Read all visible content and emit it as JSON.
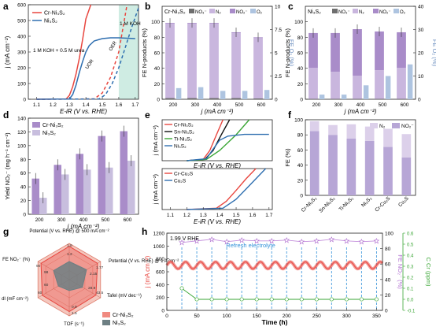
{
  "chart_data": [
    {
      "panel": "a",
      "type": "line",
      "xlabel": "E-iR (V vs. RHE)",
      "ylabel": "j (mA cm⁻²)",
      "xlim": [
        1.05,
        1.72
      ],
      "ylim": [
        0,
        600
      ],
      "xticks": [
        "1.1",
        "1.2",
        "1.3",
        "1.4",
        "1.5",
        "1.6",
        "1.7"
      ],
      "yticks": [
        "0",
        "100",
        "200",
        "300",
        "400",
        "500",
        "600"
      ],
      "legend": [
        "Cr-Ni₃S₂",
        "Ni₃S₂"
      ],
      "annotations": [
        "1 M KOH + 0.5 M urea",
        "1 M KOH",
        "UOR",
        "OER"
      ],
      "series": [
        {
          "name": "Cr-Ni₃S₂",
          "style": "solid",
          "color": "#e8463f",
          "x": [
            1.1,
            1.28,
            1.3,
            1.32,
            1.34,
            1.36,
            1.38,
            1.4,
            1.43
          ],
          "y": [
            0,
            2,
            25,
            80,
            160,
            260,
            380,
            510,
            600
          ]
        },
        {
          "name": "Ni₃S₂",
          "style": "solid",
          "color": "#2f6fb0",
          "x": [
            1.1,
            1.3,
            1.32,
            1.34,
            1.36,
            1.38,
            1.4,
            1.42,
            1.45,
            1.5,
            1.55,
            1.6,
            1.7
          ],
          "y": [
            0,
            2,
            30,
            90,
            170,
            240,
            300,
            340,
            370,
            385,
            390,
            390,
            385
          ]
        },
        {
          "style": "dashed",
          "color": "#e8463f",
          "x": [
            1.1,
            1.45,
            1.5,
            1.55,
            1.6,
            1.62,
            1.65
          ],
          "y": [
            0,
            2,
            40,
            140,
            300,
            420,
            600
          ]
        },
        {
          "style": "dashed",
          "color": "#2f6fb0",
          "x": [
            1.1,
            1.48,
            1.52,
            1.56,
            1.6,
            1.64,
            1.68,
            1.72
          ],
          "y": [
            0,
            2,
            30,
            100,
            200,
            330,
            460,
            580
          ]
        }
      ]
    },
    {
      "panel": "b",
      "type": "bar",
      "label": "Cr-Ni₃S₂",
      "xlabel": "j (mA cm⁻²)",
      "ylabel": "FE N-products (%)",
      "y2label": "FE O₂ (%)",
      "categories": [
        "200",
        "300",
        "400",
        "500",
        "600"
      ],
      "ylim": [
        0,
        120
      ],
      "y2lim": [
        0,
        10
      ],
      "legend": [
        "NO₃⁻",
        "N₂",
        "NO₂⁻",
        "O₂"
      ],
      "NO3": [
        1.5,
        1.5,
        1.5,
        1.5,
        1.0
      ],
      "N2": [
        96,
        96,
        96,
        84,
        78
      ],
      "NO2": [
        1.0,
        1.0,
        1.0,
        1.0,
        1.0
      ],
      "O2": [
        1.2,
        1.3,
        0.9,
        0.9,
        1.0
      ]
    },
    {
      "panel": "c",
      "type": "bar",
      "label": "Ni₃S₂",
      "xlabel": "j (mA cm⁻²)",
      "ylabel": "FE N-products (%)",
      "y2label": "FE O₂ (%)",
      "categories": [
        "200",
        "300",
        "400",
        "500",
        "600"
      ],
      "ylim": [
        0,
        120
      ],
      "y2lim": [
        0,
        40
      ],
      "legend": [
        "NO₃⁻",
        "N₂",
        "NO₂⁻",
        "O₂"
      ],
      "NO3": [
        0.5,
        0.5,
        0.5,
        0.5,
        0.5
      ],
      "N2": [
        40,
        35,
        30,
        37,
        40
      ],
      "NO2": [
        45,
        50,
        60,
        50,
        46
      ],
      "O2": [
        2,
        2,
        6,
        10,
        15
      ]
    },
    {
      "panel": "d",
      "type": "bar",
      "xlabel": "j (mA cm⁻²)",
      "ylabel": "Yield NO₂⁻ (mg h⁻¹ cm⁻²)",
      "categories": [
        "200",
        "300",
        "400",
        "500",
        "600"
      ],
      "ylim": [
        0,
        140
      ],
      "legend": [
        "Cr-Ni₃S₂",
        "Ni₃S₂"
      ],
      "series": [
        {
          "name": "Cr-Ni₃S₂",
          "values": [
            52,
            72,
            88,
            114,
            121
          ]
        },
        {
          "name": "Ni₃S₂",
          "values": [
            24,
            58,
            65,
            68,
            78
          ]
        }
      ]
    },
    {
      "panel": "e",
      "type": "line",
      "xlabel": "E-iR (V vs. RHE)",
      "ylabel": "j (mA cm⁻²)",
      "top": {
        "ylim": [
          0,
          600
        ],
        "legend": [
          "Cr-Ni₃S₂",
          "Sn-Ni₃S₂",
          "Ti-Ni₃S₂",
          "Ni₃S₂"
        ],
        "series": [
          {
            "name": "Cr-Ni₃S₂",
            "color": "#e8463f",
            "x": [
              1.2,
              1.3,
              1.34,
              1.38,
              1.42
            ],
            "y": [
              0,
              20,
              150,
              380,
              600
            ]
          },
          {
            "name": "Sn-Ni₃S₂",
            "color": "#111111",
            "x": [
              1.2,
              1.31,
              1.36,
              1.41,
              1.46
            ],
            "y": [
              0,
              20,
              150,
              380,
              600
            ]
          },
          {
            "name": "Ti-Ni₃S₂",
            "color": "#3aa635",
            "x": [
              1.2,
              1.32,
              1.4,
              1.5,
              1.58
            ],
            "y": [
              0,
              20,
              150,
              380,
              600
            ]
          },
          {
            "name": "Ni₃S₂",
            "color": "#2f6fb0",
            "x": [
              1.2,
              1.32,
              1.36,
              1.4,
              1.45,
              1.55,
              1.7
            ],
            "y": [
              0,
              30,
              170,
              300,
              360,
              385,
              385
            ]
          }
        ]
      },
      "bottom": {
        "ylim": [
          0,
          600
        ],
        "legend": [
          "Cr-Cu₂S",
          "Cu₂S"
        ],
        "series": [
          {
            "name": "Cr-Cu₂S",
            "color": "#e8463f",
            "x": [
              1.2,
              1.38,
              1.44,
              1.5,
              1.56,
              1.62
            ],
            "y": [
              0,
              20,
              120,
              280,
              450,
              600
            ]
          },
          {
            "name": "Cu₂S",
            "color": "#2f6fb0",
            "x": [
              1.2,
              1.42,
              1.5,
              1.56,
              1.62,
              1.68
            ],
            "y": [
              0,
              20,
              150,
              300,
              450,
              600
            ]
          }
        ]
      },
      "xticks": [
        "1.1",
        "1.2",
        "1.3",
        "1.4",
        "1.5",
        "1.6",
        "1.7"
      ]
    },
    {
      "panel": "f",
      "type": "bar",
      "ylabel": "FE (%)",
      "ylim": [
        0,
        100
      ],
      "legend": [
        "N₂",
        "NO₂⁻"
      ],
      "categories": [
        "Cr-Ni₃S₂",
        "Sn-Ni₃S₂",
        "Ti-Ni₃S₂",
        "Ni₃S₂",
        "Cr-Cu₂S",
        "Cu₂S"
      ],
      "NO2": [
        85,
        80,
        75,
        72,
        64,
        50
      ],
      "N2": [
        13,
        13,
        19,
        19,
        24,
        31
      ]
    },
    {
      "panel": "g",
      "type": "radar",
      "axes": [
        "Potential (V vs. RHE) @ 500 mA cm⁻²",
        "Potential (V vs. RHE) @ 1 A cm⁻²",
        "Tafel (mV dec⁻¹)",
        "TOF (s⁻¹)",
        "C dl (mF cm⁻²)",
        "FE NO₂⁻ (%)"
      ],
      "tick_labels": [
        "1.8",
        "1.2",
        "1.77",
        "2.15",
        "43.5",
        "28.9",
        "0.9",
        "1.5",
        "60",
        "60",
        "90",
        "98"
      ],
      "legend": [
        "Cr-Ni₃S₂",
        "Ni₃S₂"
      ],
      "series": [
        {
          "name": "Cr-Ni₃S₂",
          "values": [
            0.92,
            0.9,
            0.85,
            0.88,
            0.86,
            0.9
          ]
        },
        {
          "name": "Ni₃S₂",
          "values": [
            0.5,
            0.55,
            0.42,
            0.3,
            0.35,
            0.5
          ]
        }
      ]
    },
    {
      "panel": "h",
      "type": "line",
      "xlabel": "Time (h)",
      "ylabel": "j (mA cm⁻²)",
      "y2label": "FE NO₂⁻ (%)",
      "y3label": "C Cr (ppm)",
      "annotations": [
        "1.99 V RHE",
        "Refresh electrolyte"
      ],
      "xlim": [
        0,
        360
      ],
      "xticks": [
        "0",
        "50",
        "100",
        "150",
        "200",
        "250",
        "300",
        "350"
      ],
      "ylim": [
        0,
        1200
      ],
      "yticks": [
        "0",
        "200",
        "400",
        "600",
        "800",
        "1000",
        "1200"
      ],
      "y2lim": [
        0,
        100
      ],
      "y2ticks": [
        "0",
        "20",
        "40",
        "60",
        "80",
        "100"
      ],
      "y3lim": [
        -0.1,
        0.6
      ],
      "y3ticks": [
        "-0.1",
        "0.0",
        "0.1",
        "0.2",
        "0.3",
        "0.4",
        "0.5",
        "0.6"
      ],
      "refresh_times": [
        25,
        50,
        75,
        100,
        125,
        150,
        175,
        200,
        225,
        250,
        275,
        300,
        325,
        350
      ],
      "j_mean": 700,
      "FE_x": [
        25,
        50,
        75,
        100,
        125,
        150,
        175,
        200,
        225,
        250,
        275,
        300,
        325,
        350
      ],
      "FE_y": [
        88,
        90,
        92,
        89,
        91,
        90,
        90,
        91,
        89,
        90,
        92,
        90,
        89,
        90
      ],
      "Ccr_x": [
        25,
        50,
        75,
        100,
        125,
        150,
        175,
        200,
        225,
        250,
        275,
        300,
        325,
        350
      ],
      "Ccr_y": [
        0.1,
        0.0,
        0.0,
        0.0,
        0.0,
        0.0,
        0.0,
        0.0,
        0.0,
        0.0,
        0.0,
        0.0,
        0.0,
        0.0
      ]
    }
  ],
  "panel_labels": [
    "a",
    "b",
    "c",
    "d",
    "e",
    "f",
    "g",
    "h"
  ],
  "colors": {
    "red": "#e8463f",
    "blue": "#2f6fb0",
    "green": "#3aa635",
    "purple": "#a98cc9",
    "lavender": "#c9b6de",
    "gray": "#6e6e6e",
    "teal": "#7fc9b5"
  }
}
